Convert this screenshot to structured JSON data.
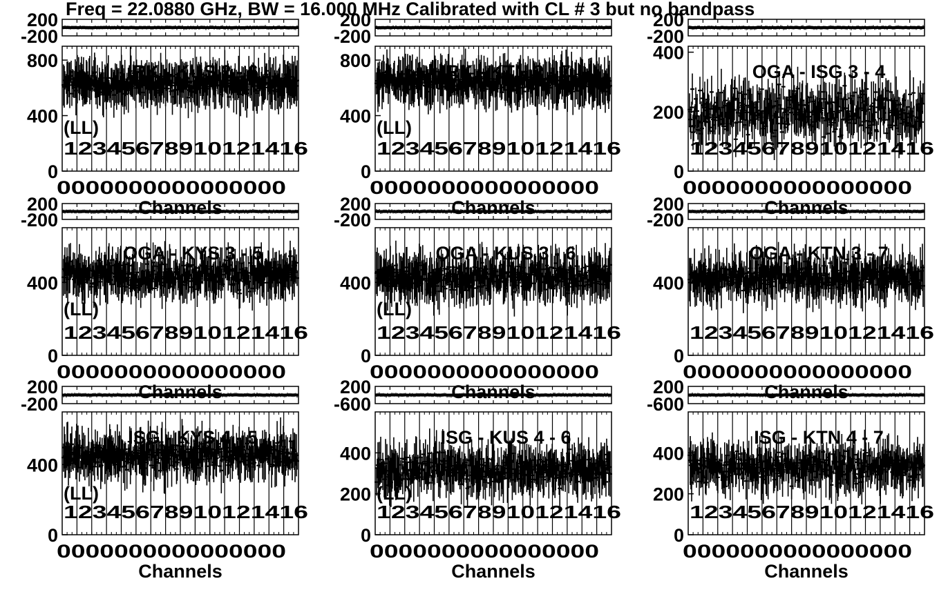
{
  "figure": {
    "title": "Freq = 22.0880 GHz, BW = 16.000 MHz Calibrated with CL # 3 but no bandpass",
    "background": "#ffffff",
    "ink": "#000000"
  },
  "chart_data": [
    {
      "type": "scatter",
      "label": "IRK - KUS  2 - 6",
      "pol": "(LL)",
      "phase_ylim": [
        -200,
        200
      ],
      "phase_ticks": [
        200,
        -200
      ],
      "amp_ylim": [
        0,
        900
      ],
      "amp_ticks": [
        800,
        400,
        0
      ],
      "amp_mean": 630,
      "amp_spread": 110,
      "channel_labels": "12345678910121416",
      "xtick_labels": "0000000000000000",
      "xlabel": "Channels"
    },
    {
      "type": "scatter",
      "label": "IRK - KTN  2 - 7",
      "pol": "(LL)",
      "phase_ylim": [
        -200,
        200
      ],
      "phase_ticks": [
        200,
        -200
      ],
      "amp_ylim": [
        0,
        900
      ],
      "amp_ticks": [
        800,
        400,
        0
      ],
      "amp_mean": 640,
      "amp_spread": 110,
      "channel_labels": "12345678910121416",
      "xtick_labels": "0000000000000000",
      "xlabel": "Channels"
    },
    {
      "type": "scatter",
      "label": "OGA - ISG  3 - 4",
      "pol": "",
      "phase_ylim": [
        -200,
        200
      ],
      "phase_ticks": [
        200,
        -200
      ],
      "amp_ylim": [
        0,
        420
      ],
      "amp_ticks": [
        400,
        200,
        0
      ],
      "amp_mean": 200,
      "amp_spread": 110,
      "channel_labels": "12345678910121416",
      "xtick_labels": "0000000000000000",
      "xlabel": "Channels"
    },
    {
      "type": "scatter",
      "label": "OGA - KYS  3 - 5",
      "pol": "(LL)",
      "phase_ylim": [
        -200,
        200
      ],
      "phase_ticks": [
        200,
        -200
      ],
      "amp_ylim": [
        0,
        700
      ],
      "amp_ticks": [
        400,
        0
      ],
      "amp_mean": 440,
      "amp_spread": 110,
      "channel_labels": "12345678910121416",
      "xtick_labels": "0000000000000000",
      "xlabel": "Channels"
    },
    {
      "type": "scatter",
      "label": "OGA - KUS  3 - 6",
      "pol": "(LL)",
      "phase_ylim": [
        -200,
        200
      ],
      "phase_ticks": [
        200,
        -200
      ],
      "amp_ylim": [
        0,
        700
      ],
      "amp_ticks": [
        400,
        0
      ],
      "amp_mean": 430,
      "amp_spread": 110,
      "channel_labels": "12345678910121416",
      "xtick_labels": "0000000000000000",
      "xlabel": "Channels"
    },
    {
      "type": "scatter",
      "label": "OGA - KTN  3 - 7",
      "pol": "",
      "phase_ylim": [
        -200,
        200
      ],
      "phase_ticks": [
        200,
        -200
      ],
      "amp_ylim": [
        0,
        700
      ],
      "amp_ticks": [
        400,
        0
      ],
      "amp_mean": 430,
      "amp_spread": 110,
      "channel_labels": "12345678910121416",
      "xtick_labels": "0000000000000000",
      "xlabel": "Channels"
    },
    {
      "type": "scatter",
      "label": "ISG - KYS  4 - 5",
      "pol": "(LL)",
      "phase_ylim": [
        -200,
        200
      ],
      "phase_ticks": [
        200,
        -200
      ],
      "amp_ylim": [
        0,
        700
      ],
      "amp_ticks": [
        400,
        0
      ],
      "amp_mean": 450,
      "amp_spread": 110,
      "channel_labels": "12345678910121416",
      "xtick_labels": "0000000000000000",
      "xlabel": "Channels"
    },
    {
      "type": "scatter",
      "label": "ISG - KUS  4 - 6",
      "pol": "(LL)",
      "phase_ylim": [
        -200,
        200
      ],
      "phase_ticks": [
        200,
        -600
      ],
      "amp_ylim": [
        0,
        600
      ],
      "amp_ticks": [
        400,
        200,
        0
      ],
      "amp_mean": 320,
      "amp_spread": 110,
      "channel_labels": "12345678910121416",
      "xtick_labels": "0000000000000000",
      "xlabel": "Channels"
    },
    {
      "type": "scatter",
      "label": "ISG - KTN  4 - 7",
      "pol": "",
      "phase_ylim": [
        -200,
        200
      ],
      "phase_ticks": [
        200,
        -600
      ],
      "amp_ylim": [
        0,
        600
      ],
      "amp_ticks": [
        400,
        200,
        0
      ],
      "amp_mean": 330,
      "amp_spread": 110,
      "channel_labels": "12345678910121416",
      "xtick_labels": "0000000000000000",
      "xlabel": "Channels"
    }
  ]
}
